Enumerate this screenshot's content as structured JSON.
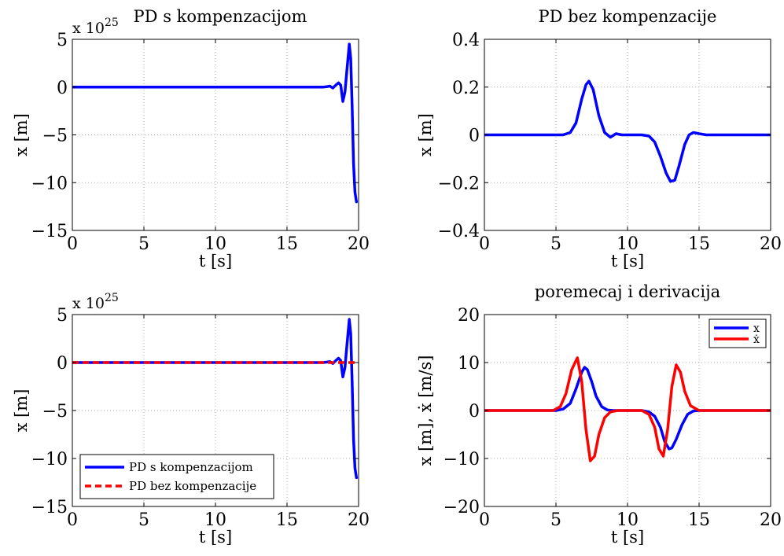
{
  "chart_data": [
    {
      "type": "line",
      "title": "PD s kompenzacijom",
      "exponent_label": {
        "base": "x 10",
        "exp": "25"
      },
      "xlabel": "t [s]",
      "ylabel": "x [m]",
      "xlim": [
        0,
        20
      ],
      "ylim": [
        -15,
        5
      ],
      "xticks": [
        "0",
        "5",
        "10",
        "15",
        "20"
      ],
      "yticks": [
        "5",
        "0",
        "−5",
        "−10",
        "−15"
      ],
      "grid": true,
      "series": [
        {
          "color": "#0000ff",
          "dashed": false,
          "x": [
            0,
            17.5,
            17.8,
            18.0,
            18.2,
            18.4,
            18.6,
            18.75,
            18.9,
            19.05,
            19.2,
            19.35,
            19.45,
            19.55,
            19.65,
            19.75,
            19.85
          ],
          "y": [
            0,
            0,
            0.05,
            0.1,
            -0.1,
            0.2,
            0.45,
            0.2,
            -1.5,
            -0.5,
            2.0,
            4.5,
            3.0,
            -2.0,
            -8.0,
            -11.0,
            -12.0
          ]
        }
      ]
    },
    {
      "type": "line",
      "title": "PD bez kompenzacije",
      "xlabel": "t [s]",
      "ylabel": "x [m]",
      "xlim": [
        0,
        20
      ],
      "ylim": [
        -0.4,
        0.4
      ],
      "xticks": [
        "0",
        "5",
        "10",
        "15",
        "20"
      ],
      "yticks": [
        "0.4",
        "0.2",
        "0",
        "−0.2",
        "−0.4"
      ],
      "grid": true,
      "series": [
        {
          "color": "#0000ff",
          "dashed": false,
          "x": [
            0,
            5.5,
            6.0,
            6.4,
            6.8,
            7.1,
            7.3,
            7.6,
            8.0,
            8.4,
            8.8,
            9.2,
            9.6,
            10.0,
            11.0,
            11.5,
            11.9,
            12.3,
            12.7,
            13.0,
            13.3,
            13.6,
            14.0,
            14.3,
            14.6,
            15.0,
            15.5,
            16.0,
            20.0
          ],
          "y": [
            0,
            0,
            0.01,
            0.05,
            0.15,
            0.21,
            0.225,
            0.19,
            0.08,
            0.01,
            -0.01,
            0.005,
            0,
            0,
            0,
            -0.005,
            -0.03,
            -0.09,
            -0.16,
            -0.195,
            -0.19,
            -0.13,
            -0.04,
            0,
            0.01,
            0.005,
            0,
            0,
            0
          ]
        }
      ]
    },
    {
      "type": "line",
      "title": "",
      "exponent_label": {
        "base": "x 10",
        "exp": "25"
      },
      "xlabel": "t [s]",
      "ylabel": "x [m]",
      "xlim": [
        0,
        20
      ],
      "ylim": [
        -15,
        5
      ],
      "xticks": [
        "0",
        "5",
        "10",
        "15",
        "20"
      ],
      "yticks": [
        "5",
        "0",
        "−5",
        "−10",
        "−15"
      ],
      "grid": true,
      "legend": "bottom-left",
      "series": [
        {
          "name": "PD s kompenzacijom",
          "color": "#0000ff",
          "dashed": false,
          "x": [
            0,
            17.5,
            17.8,
            18.0,
            18.2,
            18.4,
            18.6,
            18.75,
            18.9,
            19.05,
            19.2,
            19.35,
            19.45,
            19.55,
            19.65,
            19.75,
            19.85
          ],
          "y": [
            0,
            0,
            0.05,
            0.1,
            -0.1,
            0.2,
            0.45,
            0.2,
            -1.5,
            -0.5,
            2.0,
            4.5,
            3.0,
            -2.0,
            -8.0,
            -11.0,
            -12.0
          ]
        },
        {
          "name": "PD bez kompenzacije",
          "color": "#ff0000",
          "dashed": true,
          "x": [
            0,
            20
          ],
          "y": [
            0,
            0
          ]
        }
      ]
    },
    {
      "type": "line",
      "title": "poremecaj i derivacija",
      "xlabel": "t [s]",
      "ylabel": "x [m], ẋ [m/s]",
      "xlim": [
        0,
        20
      ],
      "ylim": [
        -20,
        20
      ],
      "xticks": [
        "0",
        "5",
        "10",
        "15",
        "20"
      ],
      "yticks": [
        "20",
        "10",
        "0",
        "−10",
        "−20"
      ],
      "grid": true,
      "legend": "top-right",
      "series": [
        {
          "name": "x",
          "color": "#0000ff",
          "dashed": false,
          "x": [
            0,
            5.0,
            5.5,
            6.0,
            6.4,
            6.8,
            7.0,
            7.2,
            7.5,
            7.8,
            8.2,
            8.6,
            9.0,
            10.0,
            11.0,
            11.5,
            11.9,
            12.3,
            12.6,
            12.9,
            13.1,
            13.4,
            13.8,
            14.2,
            14.6,
            15.0,
            20.0
          ],
          "y": [
            0,
            0,
            0.3,
            1.5,
            4.5,
            8.0,
            9.0,
            8.5,
            6.0,
            3.0,
            0.8,
            0.1,
            0,
            0,
            0,
            -0.3,
            -1.2,
            -3.5,
            -6.5,
            -8.0,
            -7.8,
            -6.0,
            -3.0,
            -0.8,
            -0.1,
            0,
            0
          ]
        },
        {
          "name": "ẋ",
          "color": "#ff0000",
          "dashed": false,
          "x": [
            0,
            4.8,
            5.3,
            5.7,
            6.1,
            6.5,
            6.8,
            7.1,
            7.4,
            7.7,
            8.0,
            8.4,
            8.8,
            9.3,
            10.0,
            11.0,
            11.5,
            11.9,
            12.2,
            12.5,
            12.8,
            13.1,
            13.4,
            13.7,
            14.0,
            14.4,
            15.0,
            20.0
          ],
          "y": [
            0,
            0,
            0.8,
            3.5,
            8.5,
            11.0,
            6.0,
            -4.0,
            -10.5,
            -9.5,
            -5.0,
            -1.5,
            -0.3,
            0,
            0,
            0,
            -0.8,
            -3.5,
            -8.0,
            -9.5,
            -4.0,
            5.0,
            9.5,
            8.0,
            4.0,
            1.0,
            0,
            0
          ]
        }
      ]
    }
  ]
}
